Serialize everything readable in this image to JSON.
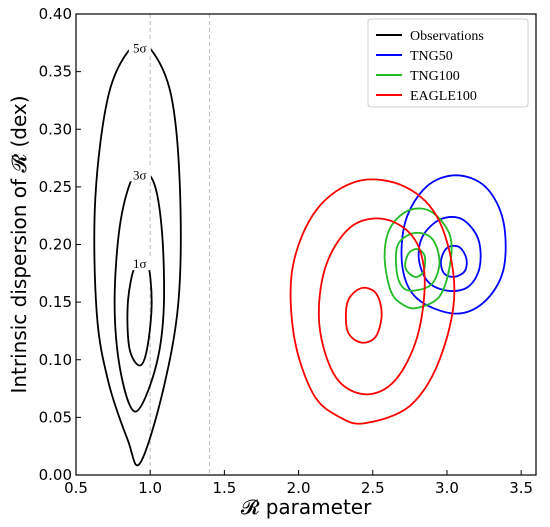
{
  "chart_data": {
    "type": "contour",
    "xlabel": "𝓡 parameter",
    "ylabel": "Intrinsic dispersion of 𝓡 (dex)",
    "xlim": [
      0.5,
      3.6
    ],
    "ylim": [
      0.0,
      0.4
    ],
    "xticks": [
      "0.5",
      "1.0",
      "1.5",
      "2.0",
      "2.5",
      "3.0",
      "3.5"
    ],
    "yticks": [
      "0.00",
      "0.05",
      "0.10",
      "0.15",
      "0.20",
      "0.25",
      "0.30",
      "0.35",
      "0.40"
    ],
    "reference_lines_x": [
      1.0,
      1.4
    ],
    "legend": {
      "position": "top-right",
      "entries": [
        {
          "label": "Observations",
          "color": "#000000"
        },
        {
          "label": "TNG50",
          "color": "#0000ff"
        },
        {
          "label": "TNG100",
          "color": "#22bb22"
        },
        {
          "label": "EAGLE100",
          "color": "#ff0000"
        }
      ]
    },
    "contour_labels": [
      "1σ",
      "3σ",
      "5σ"
    ],
    "series": [
      {
        "name": "Observations",
        "color": "#000000",
        "contours": [
          {
            "level": "1σ",
            "points": [
              [
                0.93,
                0.095
              ],
              [
                0.98,
                0.11
              ],
              [
                1.01,
                0.15
              ],
              [
                0.98,
                0.185
              ],
              [
                0.9,
                0.182
              ],
              [
                0.85,
                0.15
              ],
              [
                0.86,
                0.11
              ]
            ]
          },
          {
            "level": "3σ",
            "points": [
              [
                0.9,
                0.055
              ],
              [
                1.03,
                0.09
              ],
              [
                1.09,
                0.14
              ],
              [
                1.08,
                0.21
              ],
              [
                1.02,
                0.255
              ],
              [
                0.9,
                0.262
              ],
              [
                0.8,
                0.22
              ],
              [
                0.76,
                0.15
              ],
              [
                0.8,
                0.09
              ]
            ]
          },
          {
            "level": "5σ",
            "points": [
              [
                0.93,
                0.01
              ],
              [
                1.08,
                0.07
              ],
              [
                1.19,
                0.15
              ],
              [
                1.2,
                0.25
              ],
              [
                1.14,
                0.33
              ],
              [
                1.0,
                0.37
              ],
              [
                0.88,
                0.372
              ],
              [
                0.72,
                0.33
              ],
              [
                0.63,
                0.24
              ],
              [
                0.64,
                0.14
              ],
              [
                0.72,
                0.08
              ],
              [
                0.85,
                0.03
              ]
            ]
          }
        ]
      },
      {
        "name": "TNG50",
        "color": "#0000ff",
        "contours": [
          {
            "level": "inner",
            "points": [
              [
                3.05,
                0.172
              ],
              [
                3.12,
                0.177
              ],
              [
                3.13,
                0.188
              ],
              [
                3.08,
                0.198
              ],
              [
                3.0,
                0.197
              ],
              [
                2.96,
                0.186
              ],
              [
                2.98,
                0.175
              ]
            ]
          },
          {
            "level": "mid",
            "points": [
              [
                3.0,
                0.16
              ],
              [
                3.14,
                0.163
              ],
              [
                3.22,
                0.18
              ],
              [
                3.21,
                0.205
              ],
              [
                3.1,
                0.222
              ],
              [
                2.96,
                0.222
              ],
              [
                2.84,
                0.208
              ],
              [
                2.81,
                0.188
              ],
              [
                2.87,
                0.168
              ]
            ]
          },
          {
            "level": "outer",
            "points": [
              [
                3.05,
                0.14
              ],
              [
                3.25,
                0.15
              ],
              [
                3.38,
                0.178
              ],
              [
                3.38,
                0.22
              ],
              [
                3.26,
                0.25
              ],
              [
                3.06,
                0.26
              ],
              [
                2.86,
                0.25
              ],
              [
                2.72,
                0.22
              ],
              [
                2.7,
                0.18
              ],
              [
                2.8,
                0.153
              ]
            ]
          }
        ]
      },
      {
        "name": "TNG100",
        "color": "#22bb22",
        "contours": [
          {
            "level": "inner",
            "points": [
              [
                2.78,
                0.172
              ],
              [
                2.84,
                0.176
              ],
              [
                2.85,
                0.19
              ],
              [
                2.8,
                0.196
              ],
              [
                2.74,
                0.192
              ],
              [
                2.72,
                0.18
              ]
            ]
          },
          {
            "level": "mid",
            "points": [
              [
                2.78,
                0.16
              ],
              [
                2.9,
                0.166
              ],
              [
                2.95,
                0.185
              ],
              [
                2.9,
                0.205
              ],
              [
                2.78,
                0.21
              ],
              [
                2.67,
                0.2
              ],
              [
                2.66,
                0.178
              ],
              [
                2.7,
                0.163
              ]
            ]
          },
          {
            "level": "outer",
            "points": [
              [
                2.8,
                0.145
              ],
              [
                2.95,
                0.155
              ],
              [
                3.02,
                0.182
              ],
              [
                3.02,
                0.208
              ],
              [
                2.9,
                0.228
              ],
              [
                2.75,
                0.23
              ],
              [
                2.62,
                0.215
              ],
              [
                2.58,
                0.19
              ],
              [
                2.62,
                0.16
              ],
              [
                2.7,
                0.148
              ]
            ]
          }
        ]
      },
      {
        "name": "EAGLE100",
        "color": "#ff0000",
        "contours": [
          {
            "level": "inner",
            "points": [
              [
                2.42,
                0.115
              ],
              [
                2.52,
                0.12
              ],
              [
                2.56,
                0.14
              ],
              [
                2.52,
                0.158
              ],
              [
                2.42,
                0.162
              ],
              [
                2.33,
                0.15
              ],
              [
                2.33,
                0.125
              ]
            ]
          },
          {
            "level": "mid",
            "points": [
              [
                2.45,
                0.07
              ],
              [
                2.65,
                0.082
              ],
              [
                2.8,
                0.12
              ],
              [
                2.85,
                0.17
              ],
              [
                2.78,
                0.205
              ],
              [
                2.58,
                0.222
              ],
              [
                2.35,
                0.215
              ],
              [
                2.18,
                0.18
              ],
              [
                2.14,
                0.13
              ],
              [
                2.25,
                0.085
              ]
            ]
          },
          {
            "level": "outer",
            "points": [
              [
                2.45,
                0.045
              ],
              [
                2.75,
                0.06
              ],
              [
                2.95,
                0.1
              ],
              [
                3.05,
                0.16
              ],
              [
                2.95,
                0.22
              ],
              [
                2.72,
                0.25
              ],
              [
                2.4,
                0.255
              ],
              [
                2.12,
                0.23
              ],
              [
                1.96,
                0.18
              ],
              [
                1.97,
                0.12
              ],
              [
                2.1,
                0.07
              ],
              [
                2.28,
                0.05
              ]
            ]
          }
        ]
      }
    ]
  }
}
